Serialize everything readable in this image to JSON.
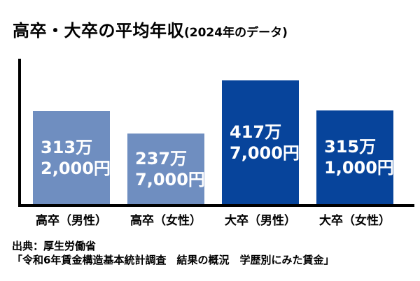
{
  "title": {
    "main": "高卒・大卒の平均年収",
    "sub": "(2024年のデータ)"
  },
  "chart_data": {
    "type": "bar",
    "title": "高卒・大卒の平均年収(2024年のデータ)",
    "categories": [
      "高卒（男性）",
      "高卒（女性）",
      "大卒（男性）",
      "大卒（女性）"
    ],
    "values": [
      313.2,
      237.7,
      417.7,
      315.1
    ],
    "unit": "万円",
    "value_labels": [
      [
        "313万",
        "2,000円"
      ],
      [
        "237万",
        "7,000円"
      ],
      [
        "417万",
        "7,000円"
      ],
      [
        "315万",
        "1,000円"
      ]
    ],
    "bar_colors": [
      "#6F8EC0",
      "#6F8EC0",
      "#07449B",
      "#07449B"
    ],
    "xlabel": "",
    "ylabel": "",
    "ylim": [
      0,
      490
    ],
    "grid": false,
    "legend": false,
    "axis_color": "#000000",
    "value_label_color": "#ffffff"
  },
  "source": {
    "line1": "出典：厚生労働省",
    "line2": "「令和6年賃金構造基本統計調査　結果の概況　学歴別にみた賃金」"
  }
}
